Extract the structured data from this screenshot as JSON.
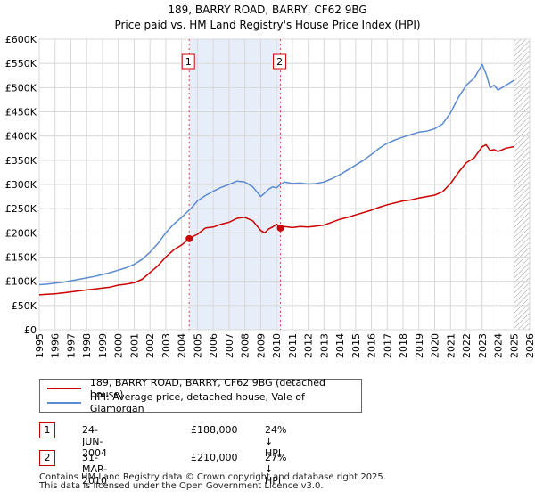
{
  "title_line1": "189, BARRY ROAD, BARRY, CF62 9BG",
  "title_line2": "Price paid vs. HM Land Registry's House Price Index (HPI)",
  "chart_data": {
    "type": "line",
    "title": "189, BARRY ROAD, BARRY, CF62 9BG — Price paid vs. HM Land Registry's House Price Index (HPI)",
    "xlim": [
      1995,
      2026
    ],
    "ylim": [
      0,
      600000
    ],
    "x_ticks": [
      1995,
      1996,
      1997,
      1998,
      1999,
      2000,
      2001,
      2002,
      2003,
      2004,
      2005,
      2006,
      2007,
      2008,
      2009,
      2010,
      2011,
      2012,
      2013,
      2014,
      2015,
      2016,
      2017,
      2018,
      2019,
      2020,
      2021,
      2022,
      2023,
      2024,
      2025,
      2026
    ],
    "y_ticks": [
      {
        "value": 0,
        "label": "£0"
      },
      {
        "value": 50000,
        "label": "£50K"
      },
      {
        "value": 100000,
        "label": "£100K"
      },
      {
        "value": 150000,
        "label": "£150K"
      },
      {
        "value": 200000,
        "label": "£200K"
      },
      {
        "value": 250000,
        "label": "£250K"
      },
      {
        "value": 300000,
        "label": "£300K"
      },
      {
        "value": 350000,
        "label": "£350K"
      },
      {
        "value": 400000,
        "label": "£400K"
      },
      {
        "value": 450000,
        "label": "£450K"
      },
      {
        "value": 500000,
        "label": "£500K"
      },
      {
        "value": 550000,
        "label": "£550K"
      },
      {
        "value": 600000,
        "label": "£600K"
      }
    ],
    "shaded_period": [
      2004.48,
      2010.25
    ],
    "future_hatch_from": 2025.0,
    "series": [
      {
        "name": "189, BARRY ROAD, BARRY, CF62 9BG (detached house)",
        "color": "#cc0000",
        "x": [
          1995,
          1995.5,
          1996,
          1996.5,
          1997,
          1997.5,
          1998,
          1998.5,
          1999,
          1999.5,
          2000,
          2000.5,
          2001,
          2001.5,
          2002,
          2002.5,
          2003,
          2003.5,
          2004,
          2004.48,
          2004.75,
          2005,
          2005.5,
          2006,
          2006.5,
          2007,
          2007.5,
          2008,
          2008.5,
          2009,
          2009.25,
          2009.5,
          2009.75,
          2010,
          2010.25,
          2010.5,
          2011,
          2011.5,
          2012,
          2012.5,
          2013,
          2013.5,
          2014,
          2014.5,
          2015,
          2015.5,
          2016,
          2016.5,
          2017,
          2017.5,
          2018,
          2018.5,
          2019,
          2019.5,
          2020,
          2020.5,
          2021,
          2021.5,
          2022,
          2022.5,
          2023,
          2023.25,
          2023.5,
          2023.75,
          2024,
          2024.5,
          2025
        ],
        "y": [
          72000,
          73000,
          74000,
          76000,
          78000,
          80000,
          82000,
          84000,
          86000,
          88000,
          92000,
          94000,
          97000,
          104000,
          118000,
          132000,
          150000,
          165000,
          175000,
          188000,
          193000,
          197000,
          210000,
          212000,
          218000,
          222000,
          230000,
          232000,
          225000,
          205000,
          200000,
          208000,
          212000,
          218000,
          210000,
          213000,
          211000,
          213000,
          212000,
          214000,
          216000,
          222000,
          228000,
          232000,
          237000,
          242000,
          247000,
          253000,
          258000,
          262000,
          266000,
          268000,
          272000,
          275000,
          278000,
          285000,
          302000,
          325000,
          345000,
          355000,
          378000,
          382000,
          370000,
          372000,
          368000,
          375000,
          378000
        ]
      },
      {
        "name": "HPI: Average price, detached house, Vale of Glamorgan",
        "color": "#5b8bd0",
        "x": [
          1995,
          1995.5,
          1996,
          1996.5,
          1997,
          1997.5,
          1998,
          1998.5,
          1999,
          1999.5,
          2000,
          2000.5,
          2001,
          2001.5,
          2002,
          2002.5,
          2003,
          2003.5,
          2004,
          2004.48,
          2004.75,
          2005,
          2005.5,
          2006,
          2006.5,
          2007,
          2007.5,
          2008,
          2008.5,
          2009,
          2009.25,
          2009.5,
          2009.75,
          2010,
          2010.25,
          2010.5,
          2011,
          2011.5,
          2012,
          2012.5,
          2013,
          2013.5,
          2014,
          2014.5,
          2015,
          2015.5,
          2016,
          2016.5,
          2017,
          2017.5,
          2018,
          2018.5,
          2019,
          2019.5,
          2020,
          2020.5,
          2021,
          2021.5,
          2022,
          2022.5,
          2023,
          2023.25,
          2023.5,
          2023.75,
          2024,
          2024.5,
          2025
        ],
        "y": [
          93000,
          94000,
          96000,
          98000,
          101000,
          104000,
          107000,
          110000,
          114000,
          118000,
          123000,
          128000,
          135000,
          145000,
          160000,
          178000,
          200000,
          218000,
          232000,
          247000,
          256000,
          266000,
          277000,
          286000,
          294000,
          300000,
          307000,
          305000,
          295000,
          275000,
          282000,
          290000,
          295000,
          293000,
          300000,
          305000,
          302000,
          303000,
          301000,
          302000,
          305000,
          312000,
          320000,
          330000,
          340000,
          350000,
          362000,
          375000,
          385000,
          392000,
          398000,
          403000,
          408000,
          410000,
          415000,
          425000,
          448000,
          480000,
          505000,
          520000,
          548000,
          528000,
          500000,
          505000,
          495000,
          505000,
          515000
        ]
      }
    ],
    "transactions": [
      {
        "label": "1",
        "x": 2004.48,
        "y": 188000
      },
      {
        "label": "2",
        "x": 2010.25,
        "y": 210000
      }
    ]
  },
  "legend": {
    "line1": "189, BARRY ROAD, BARRY, CF62 9BG (detached house)",
    "line2": "HPI: Average price, detached house, Vale of Glamorgan"
  },
  "transactions_table": [
    {
      "num": "1",
      "date": "24-JUN-2004",
      "price": "£188,000",
      "hpi": "24% ↓ HPI"
    },
    {
      "num": "2",
      "date": "31-MAR-2010",
      "price": "£210,000",
      "hpi": "27% ↓ HPI"
    }
  ],
  "footer": {
    "line1": "Contains HM Land Registry data © Crown copyright and database right 2025.",
    "line2": "This data is licensed under the Open Government Licence v3.0."
  }
}
